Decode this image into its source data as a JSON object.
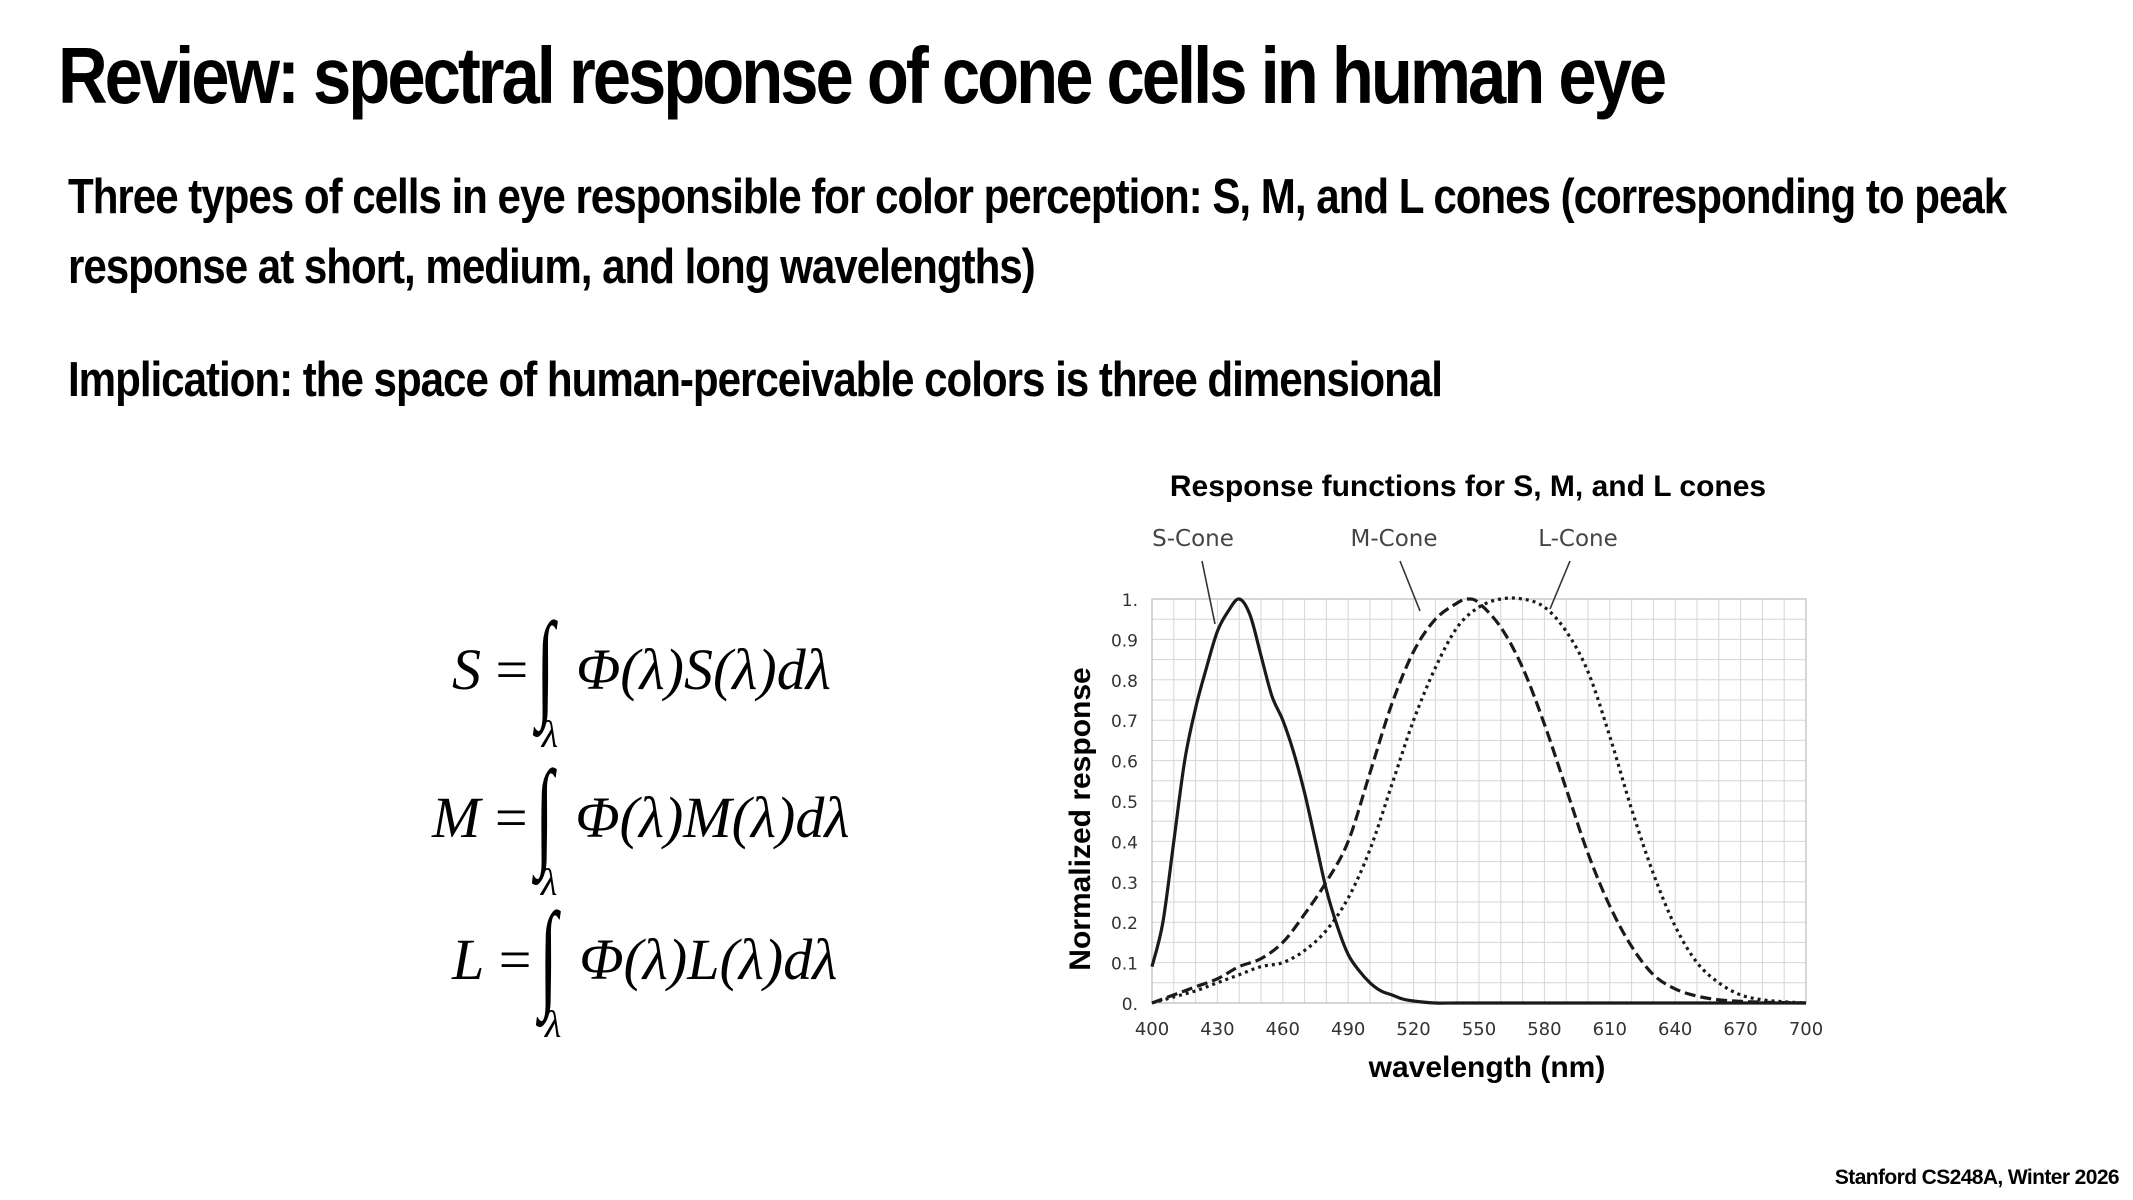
{
  "slide": {
    "title": "Review: spectral response of cone cells in human eye",
    "bullet1_line1": "Three types of cells in eye responsible for color perception: S, M, and L cones (corresponding to peak",
    "bullet1_line2": "response at short, medium, and long wavelengths)",
    "bullet2": "Implication: the space of human-perceivable colors is three dimensional",
    "footer": "Stanford CS248A, Winter 2026"
  },
  "equations": [
    {
      "lhs": "S",
      "integrand": "Φ(λ)S(λ)dλ",
      "sub": "λ",
      "op": "=",
      "int": "∫"
    },
    {
      "lhs": "M",
      "integrand": "Φ(λ)M(λ)dλ",
      "sub": "λ",
      "op": "=",
      "int": "∫"
    },
    {
      "lhs": "L",
      "integrand": "Φ(λ)L(λ)dλ",
      "sub": "λ",
      "op": "=",
      "int": "∫"
    }
  ],
  "chart_data": {
    "type": "line",
    "title": "Response functions for S, M, and L cones",
    "xlabel": "wavelength (nm)",
    "ylabel": "Normalized response",
    "xlim": [
      400,
      700
    ],
    "ylim": [
      0,
      1
    ],
    "x_ticks": [
      400,
      430,
      460,
      490,
      520,
      550,
      580,
      610,
      640,
      670,
      700
    ],
    "x_tick_labels": [
      "400",
      "430",
      "460",
      "490",
      "520",
      "550",
      "580",
      "610",
      "640",
      "670",
      "700"
    ],
    "y_ticks": [
      0,
      0.1,
      0.2,
      0.3,
      0.4,
      0.5,
      0.6,
      0.7,
      0.8,
      0.9,
      1
    ],
    "y_tick_labels": [
      "0.",
      "0.1",
      "0.2",
      "0.3",
      "0.4",
      "0.5",
      "0.6",
      "0.7",
      "0.8",
      "0.9",
      "1."
    ],
    "grid": true,
    "series": [
      {
        "name": "S-Cone",
        "line_style": "solid",
        "x": [
          400,
          405,
          410,
          415,
          420,
          425,
          430,
          435,
          440,
          445,
          450,
          455,
          460,
          465,
          470,
          475,
          480,
          485,
          490,
          495,
          500,
          505,
          510,
          515,
          520,
          530,
          540,
          560,
          600,
          700
        ],
        "y": [
          0.09,
          0.2,
          0.4,
          0.6,
          0.73,
          0.83,
          0.92,
          0.97,
          1.0,
          0.96,
          0.86,
          0.76,
          0.7,
          0.62,
          0.52,
          0.4,
          0.28,
          0.19,
          0.12,
          0.08,
          0.05,
          0.03,
          0.02,
          0.01,
          0.005,
          0,
          0,
          0,
          0,
          0
        ]
      },
      {
        "name": "M-Cone",
        "line_style": "dashed",
        "x": [
          400,
          410,
          420,
          430,
          440,
          450,
          460,
          470,
          480,
          490,
          500,
          510,
          520,
          530,
          540,
          545,
          550,
          560,
          570,
          580,
          590,
          600,
          610,
          620,
          630,
          640,
          650,
          660,
          670,
          680,
          690,
          700
        ],
        "y": [
          0.0,
          0.02,
          0.04,
          0.06,
          0.09,
          0.11,
          0.15,
          0.22,
          0.3,
          0.4,
          0.57,
          0.74,
          0.87,
          0.95,
          0.99,
          1.0,
          0.99,
          0.93,
          0.83,
          0.69,
          0.53,
          0.37,
          0.24,
          0.14,
          0.07,
          0.035,
          0.017,
          0.008,
          0.004,
          0.002,
          0.001,
          0
        ]
      },
      {
        "name": "L-Cone",
        "line_style": "dotted",
        "x": [
          400,
          410,
          420,
          430,
          440,
          450,
          460,
          470,
          480,
          490,
          500,
          510,
          520,
          530,
          540,
          550,
          560,
          570,
          580,
          590,
          600,
          610,
          620,
          630,
          640,
          650,
          660,
          670,
          680,
          690,
          700
        ],
        "y": [
          0.0,
          0.015,
          0.03,
          0.05,
          0.07,
          0.09,
          0.1,
          0.13,
          0.18,
          0.26,
          0.38,
          0.54,
          0.7,
          0.83,
          0.93,
          0.98,
          1.0,
          1.0,
          0.98,
          0.92,
          0.82,
          0.66,
          0.48,
          0.32,
          0.19,
          0.1,
          0.05,
          0.02,
          0.008,
          0.003,
          0
        ]
      }
    ]
  }
}
